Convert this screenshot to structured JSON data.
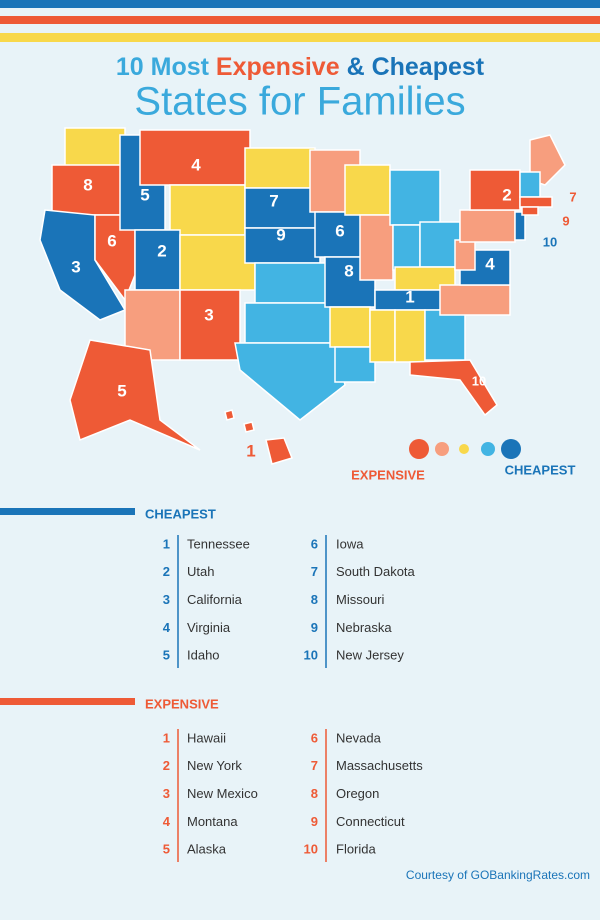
{
  "title": {
    "line1": [
      "10 Most",
      "Expensive",
      "&",
      "Cheapest"
    ],
    "line2": "States for Families"
  },
  "map_labels": [
    8,
    4,
    5,
    7,
    9,
    6,
    2,
    6,
    3,
    8,
    1,
    4,
    3,
    2,
    7,
    9,
    10,
    10,
    5,
    1
  ],
  "legend": {
    "expensive": "EXPENSIVE",
    "cheapest": "CHEAPEST"
  },
  "cheapest": {
    "heading": "CHEAPEST",
    "items": [
      {
        "rank": 1,
        "state": "Tennessee"
      },
      {
        "rank": 2,
        "state": "Utah"
      },
      {
        "rank": 3,
        "state": "California"
      },
      {
        "rank": 4,
        "state": "Virginia"
      },
      {
        "rank": 5,
        "state": "Idaho"
      },
      {
        "rank": 6,
        "state": "Iowa"
      },
      {
        "rank": 7,
        "state": "South Dakota"
      },
      {
        "rank": 8,
        "state": "Missouri"
      },
      {
        "rank": 9,
        "state": "Nebraska"
      },
      {
        "rank": 10,
        "state": "New Jersey"
      }
    ]
  },
  "expensive": {
    "heading": "EXPENSIVE",
    "items": [
      {
        "rank": 1,
        "state": "Hawaii"
      },
      {
        "rank": 2,
        "state": "New York"
      },
      {
        "rank": 3,
        "state": "New Mexico"
      },
      {
        "rank": 4,
        "state": "Montana"
      },
      {
        "rank": 5,
        "state": "Alaska"
      },
      {
        "rank": 6,
        "state": "Nevada"
      },
      {
        "rank": 7,
        "state": "Massachusetts"
      },
      {
        "rank": 8,
        "state": "Oregon"
      },
      {
        "rank": 9,
        "state": "Connecticut"
      },
      {
        "rank": 10,
        "state": "Florida"
      }
    ]
  },
  "footer": "Courtesy of GOBankingRates.com"
}
